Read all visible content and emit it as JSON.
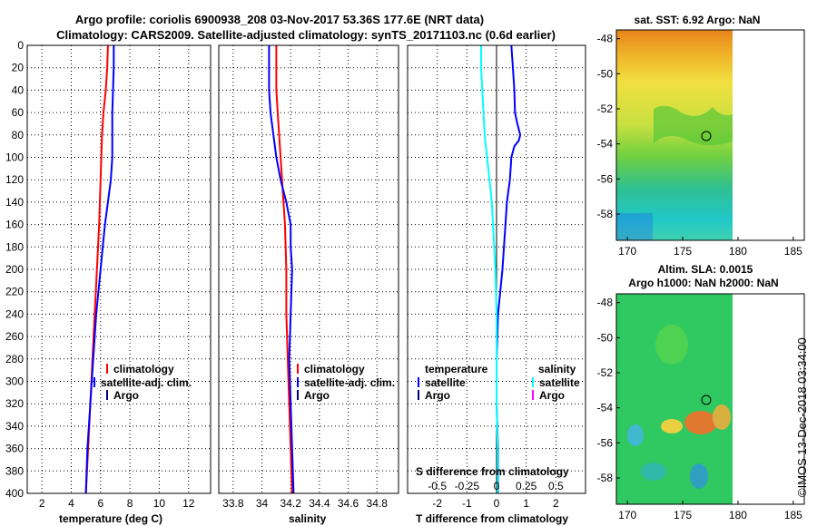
{
  "title_line1": "Argo profile: coriolis 6900938_208 03-Nov-2017 53.36S 177.6E (NRT data)",
  "title_line2": "Climatology: CARS2009. Satellite-adjusted climatology: synTS_20171103.nc (0.6d earlier)",
  "watermark": "©IMOS 13-Dec-2018 03:34:00",
  "colors": {
    "climatology": "#ff0000",
    "satellite": "#0000ff",
    "argo": "#000080",
    "sat_salinity": "#00ffff",
    "argo_salinity": "#ff00ff"
  },
  "chart_data": [
    {
      "id": "temperature",
      "type": "line",
      "xlabel": "temperature (deg C)",
      "ylabel": "",
      "xlim": [
        1,
        13.5
      ],
      "ylim": [
        400,
        0
      ],
      "x_ticks": [
        2,
        4,
        6,
        8,
        10,
        12
      ],
      "y_ticks": [
        0,
        20,
        40,
        60,
        80,
        100,
        120,
        140,
        160,
        180,
        200,
        220,
        240,
        260,
        280,
        300,
        320,
        340,
        360,
        380,
        400
      ],
      "legend": [
        "climatology",
        "satellite-adj. clim.",
        "Argo"
      ],
      "series": [
        {
          "name": "climatology",
          "color": "#ff0000",
          "depth": [
            0,
            20,
            40,
            60,
            80,
            100,
            120,
            140,
            160,
            200,
            240,
            280,
            320,
            360,
            400
          ],
          "values": [
            6.5,
            6.45,
            6.35,
            6.2,
            6.1,
            6.05,
            6.0,
            5.95,
            5.9,
            5.75,
            5.6,
            5.45,
            5.3,
            5.15,
            5.0
          ]
        },
        {
          "name": "satellite-adj. clim.",
          "color": "#0000ff",
          "depth": [
            0,
            20,
            40,
            60,
            80,
            100,
            120,
            140,
            160,
            200,
            240,
            280,
            320,
            360,
            400
          ],
          "values": [
            6.9,
            6.9,
            6.85,
            6.8,
            6.8,
            6.8,
            6.7,
            6.5,
            6.3,
            6.0,
            5.7,
            5.5,
            5.3,
            5.1,
            5.0
          ]
        }
      ]
    },
    {
      "id": "salinity",
      "type": "line",
      "xlabel": "salinity",
      "ylabel": "",
      "xlim": [
        33.7,
        34.95
      ],
      "ylim": [
        400,
        0
      ],
      "x_ticks": [
        33.8,
        34.0,
        34.2,
        34.4,
        34.6,
        34.8
      ],
      "x_tick_labels": [
        "33.8",
        "34",
        "34.2",
        "34.4",
        "34.6",
        "34.8"
      ],
      "legend": [
        "climatology",
        "satellite-adj. clim.",
        "Argo"
      ],
      "series": [
        {
          "name": "climatology",
          "color": "#ff0000",
          "depth": [
            0,
            20,
            40,
            60,
            80,
            100,
            120,
            140,
            160,
            200,
            240,
            280,
            320,
            360,
            400
          ],
          "values": [
            34.1,
            34.1,
            34.1,
            34.11,
            34.12,
            34.13,
            34.14,
            34.15,
            34.16,
            34.17,
            34.17,
            34.18,
            34.19,
            34.2,
            34.21
          ]
        },
        {
          "name": "satellite-adj. clim.",
          "color": "#0000ff",
          "depth": [
            0,
            20,
            40,
            60,
            80,
            100,
            120,
            140,
            160,
            180,
            200,
            240,
            280,
            320,
            360,
            400
          ],
          "values": [
            34.05,
            34.05,
            34.05,
            34.06,
            34.08,
            34.1,
            34.13,
            34.17,
            34.2,
            34.2,
            34.21,
            34.2,
            34.19,
            34.2,
            34.21,
            34.22
          ]
        }
      ]
    },
    {
      "id": "difference",
      "type": "line",
      "xlabel": "T difference from climatology",
      "xlabel_top": "S difference from climatology",
      "xlim": [
        -3,
        3
      ],
      "ylim": [
        400,
        0
      ],
      "x_ticks": [
        -2,
        -1,
        0,
        1,
        2
      ],
      "x_ticks_s": [
        -0.5,
        -0.25,
        0,
        0.25,
        0.5
      ],
      "x_tick_labels_s": [
        "-0.5",
        "-0.25",
        "0",
        "0.25",
        "0.5"
      ],
      "legend_temperature": {
        "title": "temperature",
        "items": [
          "satellite",
          "Argo"
        ]
      },
      "legend_salinity": {
        "title": "salinity",
        "items": [
          "satellite",
          "Argo"
        ]
      },
      "series": [
        {
          "name": "temperature satellite",
          "color": "#0000ff",
          "depth": [
            0,
            20,
            40,
            60,
            70,
            80,
            85,
            90,
            100,
            120,
            140,
            160,
            200,
            240,
            280,
            320,
            360,
            400
          ],
          "values": [
            0.5,
            0.55,
            0.6,
            0.62,
            0.7,
            0.8,
            0.75,
            0.6,
            0.5,
            0.45,
            0.35,
            0.3,
            0.2,
            0.05,
            0.0,
            0.0,
            0.05,
            0.05
          ]
        },
        {
          "name": "salinity satellite",
          "color": "#00ffff",
          "depth": [
            0,
            20,
            40,
            60,
            80,
            100,
            120,
            140,
            160,
            200,
            240,
            280,
            320,
            360,
            400
          ],
          "values": [
            -0.13,
            -0.13,
            -0.12,
            -0.11,
            -0.1,
            -0.08,
            -0.06,
            -0.04,
            -0.03,
            -0.01,
            0.0,
            0.0,
            0.0,
            0.01,
            0.01
          ]
        }
      ]
    },
    {
      "id": "sst-map",
      "type": "heatmap",
      "title": "sat. SST: 6.92 Argo: NaN",
      "xlim": [
        169,
        186
      ],
      "ylim": [
        -59.5,
        -47.5
      ],
      "x_ticks": [
        170,
        175,
        180,
        185
      ],
      "y_ticks": [
        -48,
        -50,
        -52,
        -54,
        -56,
        -58
      ],
      "marker": {
        "lon": 177.6,
        "lat": -53.36
      }
    },
    {
      "id": "sla-map",
      "type": "heatmap",
      "title": "Altim. SLA: 0.0015",
      "subtitle": "Argo h1000: NaN h2000: NaN",
      "xlim": [
        169,
        186
      ],
      "ylim": [
        -59.5,
        -47.5
      ],
      "x_ticks": [
        170,
        175,
        180,
        185
      ],
      "y_ticks": [
        -48,
        -50,
        -52,
        -54,
        -56,
        -58
      ],
      "marker": {
        "lon": 177.6,
        "lat": -53.36
      }
    }
  ]
}
